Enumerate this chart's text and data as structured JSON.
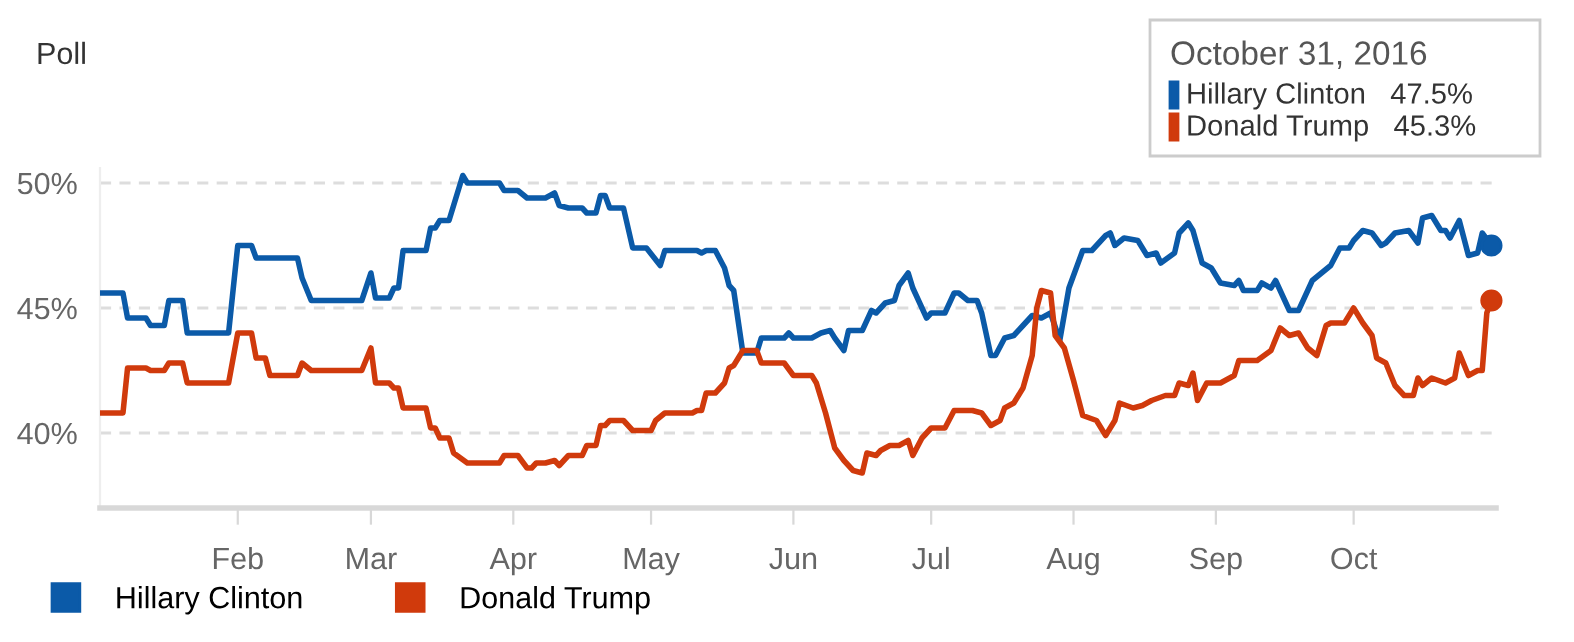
{
  "chart_data": {
    "type": "line",
    "ylabel": "Poll",
    "xlim": [
      "2016-01-02",
      "2016-11-01"
    ],
    "xticks": [
      {
        "value": "2016-02-01",
        "label": "Feb"
      },
      {
        "value": "2016-03-01",
        "label": "Mar"
      },
      {
        "value": "2016-04-01",
        "label": "Apr"
      },
      {
        "value": "2016-05-01",
        "label": "May"
      },
      {
        "value": "2016-06-01",
        "label": "Jun"
      },
      {
        "value": "2016-07-01",
        "label": "Jul"
      },
      {
        "value": "2016-08-01",
        "label": "Aug"
      },
      {
        "value": "2016-09-01",
        "label": "Sep"
      },
      {
        "value": "2016-10-01",
        "label": "Oct"
      }
    ],
    "ylim": [
      37.0,
      50.6
    ],
    "yticks": [
      {
        "value": 40,
        "label": "40%"
      },
      {
        "value": 45,
        "label": "45%"
      },
      {
        "value": 50,
        "label": "50%"
      }
    ],
    "grid": "y",
    "legend": "bottom left",
    "marker": "none",
    "line_style": "solid",
    "series": [
      {
        "name": "Hillary Clinton",
        "color": "#0b5aa8",
        "x": [
          "2016-01-02",
          "2016-01-07",
          "2016-01-08",
          "2016-01-12",
          "2016-01-13",
          "2016-01-16",
          "2016-01-17",
          "2016-01-20",
          "2016-01-21",
          "2016-01-30",
          "2016-02-01",
          "2016-02-04",
          "2016-02-05",
          "2016-02-14",
          "2016-02-15",
          "2016-02-17",
          "2016-02-28",
          "2016-03-01",
          "2016-03-02",
          "2016-03-05",
          "2016-03-06",
          "2016-03-07",
          "2016-03-08",
          "2016-03-13",
          "2016-03-14",
          "2016-03-15",
          "2016-03-16",
          "2016-03-18",
          "2016-03-19",
          "2016-03-21",
          "2016-03-22",
          "2016-03-29",
          "2016-03-30",
          "2016-04-02",
          "2016-04-04",
          "2016-04-08",
          "2016-04-10",
          "2016-04-11",
          "2016-04-13",
          "2016-04-16",
          "2016-04-17",
          "2016-04-19",
          "2016-04-20",
          "2016-04-21",
          "2016-04-22",
          "2016-04-25",
          "2016-04-27",
          "2016-04-30",
          "2016-05-03",
          "2016-05-04",
          "2016-05-11",
          "2016-05-12",
          "2016-05-13",
          "2016-05-15",
          "2016-05-17",
          "2016-05-18",
          "2016-05-19",
          "2016-05-21",
          "2016-05-24",
          "2016-05-25",
          "2016-05-30",
          "2016-05-31",
          "2016-06-01",
          "2016-06-05",
          "2016-06-07",
          "2016-06-09",
          "2016-06-10",
          "2016-06-12",
          "2016-06-13",
          "2016-06-16",
          "2016-06-18",
          "2016-06-19",
          "2016-06-21",
          "2016-06-23",
          "2016-06-24",
          "2016-06-26",
          "2016-06-27",
          "2016-06-30",
          "2016-07-01",
          "2016-07-04",
          "2016-07-06",
          "2016-07-07",
          "2016-07-09",
          "2016-07-11",
          "2016-07-12",
          "2016-07-14",
          "2016-07-15",
          "2016-07-17",
          "2016-07-19",
          "2016-07-21",
          "2016-07-23",
          "2016-07-25",
          "2016-07-27",
          "2016-07-29",
          "2016-07-31",
          "2016-08-03",
          "2016-08-05",
          "2016-08-06",
          "2016-08-08",
          "2016-08-09",
          "2016-08-10",
          "2016-08-12",
          "2016-08-15",
          "2016-08-17",
          "2016-08-19",
          "2016-08-20",
          "2016-08-23",
          "2016-08-24",
          "2016-08-26",
          "2016-08-27",
          "2016-08-29",
          "2016-08-31",
          "2016-09-02",
          "2016-09-05",
          "2016-09-06",
          "2016-09-07",
          "2016-09-10",
          "2016-09-11",
          "2016-09-13",
          "2016-09-14",
          "2016-09-15",
          "2016-09-17",
          "2016-09-19",
          "2016-09-21",
          "2016-09-22",
          "2016-09-24",
          "2016-09-26",
          "2016-09-28",
          "2016-09-30",
          "2016-10-01",
          "2016-10-03",
          "2016-10-05",
          "2016-10-07",
          "2016-10-08",
          "2016-10-10",
          "2016-10-13",
          "2016-10-15",
          "2016-10-16",
          "2016-10-18",
          "2016-10-20",
          "2016-10-21",
          "2016-10-22",
          "2016-10-24",
          "2016-10-26",
          "2016-10-28",
          "2016-10-29",
          "2016-10-31"
        ],
        "values": [
          45.6,
          45.6,
          44.6,
          44.6,
          44.3,
          44.3,
          45.3,
          45.3,
          44.0,
          44.0,
          47.5,
          47.5,
          47.0,
          47.0,
          46.2,
          45.3,
          45.3,
          46.4,
          45.4,
          45.4,
          45.8,
          45.8,
          47.3,
          47.3,
          48.2,
          48.2,
          48.5,
          48.5,
          49.1,
          50.3,
          50.0,
          50.0,
          49.7,
          49.7,
          49.4,
          49.4,
          49.6,
          49.1,
          49.0,
          49.0,
          48.8,
          48.8,
          49.5,
          49.5,
          49.0,
          49.0,
          47.4,
          47.4,
          46.7,
          47.3,
          47.3,
          47.2,
          47.3,
          47.3,
          46.6,
          45.9,
          45.7,
          43.2,
          43.2,
          43.8,
          43.8,
          44.0,
          43.8,
          43.8,
          44.0,
          44.1,
          43.8,
          43.3,
          44.1,
          44.1,
          44.9,
          44.8,
          45.2,
          45.3,
          45.9,
          46.4,
          45.8,
          44.6,
          44.8,
          44.8,
          45.6,
          45.6,
          45.3,
          45.3,
          44.8,
          43.1,
          43.1,
          43.8,
          43.9,
          44.3,
          44.7,
          44.6,
          44.8,
          43.7,
          45.8,
          47.3,
          47.3,
          47.5,
          47.9,
          48.0,
          47.5,
          47.8,
          47.7,
          47.1,
          47.2,
          46.8,
          47.2,
          48.0,
          48.4,
          48.1,
          46.8,
          46.6,
          46.0,
          45.9,
          46.1,
          45.7,
          45.7,
          46.0,
          45.8,
          46.1,
          45.7,
          44.9,
          44.9,
          45.7,
          46.1,
          46.4,
          46.7,
          47.4,
          47.4,
          47.7,
          48.1,
          48.0,
          47.5,
          47.6,
          48.0,
          48.1,
          47.6,
          48.6,
          48.7,
          48.1,
          48.1,
          47.8,
          48.5,
          47.1,
          47.2,
          48.0,
          47.5
        ]
      },
      {
        "name": "Donald Trump",
        "color": "#d03a0c",
        "x": [
          "2016-01-02",
          "2016-01-07",
          "2016-01-08",
          "2016-01-12",
          "2016-01-13",
          "2016-01-16",
          "2016-01-17",
          "2016-01-20",
          "2016-01-21",
          "2016-01-30",
          "2016-02-01",
          "2016-02-04",
          "2016-02-05",
          "2016-02-07",
          "2016-02-08",
          "2016-02-14",
          "2016-02-15",
          "2016-02-17",
          "2016-02-28",
          "2016-03-01",
          "2016-03-02",
          "2016-03-05",
          "2016-03-06",
          "2016-03-07",
          "2016-03-08",
          "2016-03-13",
          "2016-03-14",
          "2016-03-15",
          "2016-03-16",
          "2016-03-18",
          "2016-03-19",
          "2016-03-22",
          "2016-03-29",
          "2016-03-30",
          "2016-04-02",
          "2016-04-04",
          "2016-04-05",
          "2016-04-06",
          "2016-04-08",
          "2016-04-10",
          "2016-04-11",
          "2016-04-13",
          "2016-04-16",
          "2016-04-17",
          "2016-04-19",
          "2016-04-20",
          "2016-04-21",
          "2016-04-22",
          "2016-04-25",
          "2016-04-27",
          "2016-05-01",
          "2016-05-02",
          "2016-05-04",
          "2016-05-10",
          "2016-05-11",
          "2016-05-12",
          "2016-05-13",
          "2016-05-15",
          "2016-05-17",
          "2016-05-18",
          "2016-05-19",
          "2016-05-21",
          "2016-05-24",
          "2016-05-25",
          "2016-05-30",
          "2016-06-01",
          "2016-06-05",
          "2016-06-06",
          "2016-06-08",
          "2016-06-10",
          "2016-06-12",
          "2016-06-14",
          "2016-06-16",
          "2016-06-17",
          "2016-06-19",
          "2016-06-20",
          "2016-06-22",
          "2016-06-24",
          "2016-06-26",
          "2016-06-27",
          "2016-06-29",
          "2016-07-01",
          "2016-07-04",
          "2016-07-06",
          "2016-07-10",
          "2016-07-12",
          "2016-07-14",
          "2016-07-16",
          "2016-07-17",
          "2016-07-19",
          "2016-07-21",
          "2016-07-23",
          "2016-07-24",
          "2016-07-25",
          "2016-07-27",
          "2016-07-28",
          "2016-07-30",
          "2016-08-01",
          "2016-08-03",
          "2016-08-06",
          "2016-08-08",
          "2016-08-10",
          "2016-08-11",
          "2016-08-14",
          "2016-08-16",
          "2016-08-18",
          "2016-08-21",
          "2016-08-23",
          "2016-08-24",
          "2016-08-26",
          "2016-08-27",
          "2016-08-28",
          "2016-08-30",
          "2016-09-02",
          "2016-09-05",
          "2016-09-06",
          "2016-09-10",
          "2016-09-13",
          "2016-09-15",
          "2016-09-17",
          "2016-09-19",
          "2016-09-21",
          "2016-09-23",
          "2016-09-25",
          "2016-09-26",
          "2016-09-29",
          "2016-10-01",
          "2016-10-03",
          "2016-10-05",
          "2016-10-06",
          "2016-10-08",
          "2016-10-10",
          "2016-10-12",
          "2016-10-14",
          "2016-10-15",
          "2016-10-16",
          "2016-10-18",
          "2016-10-21",
          "2016-10-23",
          "2016-10-24",
          "2016-10-26",
          "2016-10-28",
          "2016-10-29",
          "2016-10-30",
          "2016-10-31"
        ],
        "values": [
          40.8,
          40.8,
          42.6,
          42.6,
          42.5,
          42.5,
          42.8,
          42.8,
          42.0,
          42.0,
          44.0,
          44.0,
          43.0,
          43.0,
          42.3,
          42.3,
          42.8,
          42.5,
          42.5,
          43.4,
          42.0,
          42.0,
          41.8,
          41.8,
          41.0,
          41.0,
          40.2,
          40.2,
          39.8,
          39.8,
          39.2,
          38.8,
          38.8,
          39.1,
          39.1,
          38.6,
          38.6,
          38.8,
          38.8,
          38.9,
          38.7,
          39.1,
          39.1,
          39.5,
          39.5,
          40.3,
          40.3,
          40.5,
          40.5,
          40.1,
          40.1,
          40.5,
          40.8,
          40.8,
          40.9,
          40.9,
          41.6,
          41.6,
          42.0,
          42.6,
          42.7,
          43.3,
          43.3,
          42.8,
          42.8,
          42.3,
          42.3,
          42.0,
          40.8,
          39.4,
          38.9,
          38.5,
          38.4,
          39.2,
          39.1,
          39.3,
          39.5,
          39.5,
          39.7,
          39.1,
          39.8,
          40.2,
          40.2,
          40.9,
          40.9,
          40.8,
          40.3,
          40.5,
          41.0,
          41.2,
          41.8,
          43.1,
          45.0,
          45.7,
          45.6,
          43.9,
          43.4,
          42.1,
          40.7,
          40.5,
          39.9,
          40.5,
          41.2,
          41.0,
          41.1,
          41.3,
          41.5,
          41.5,
          42.0,
          41.9,
          42.4,
          41.3,
          42.0,
          42.0,
          42.3,
          42.9,
          42.9,
          43.3,
          44.2,
          43.9,
          44.0,
          43.4,
          43.1,
          44.3,
          44.4,
          44.4,
          45.0,
          44.4,
          43.9,
          43.0,
          42.8,
          41.9,
          41.5,
          41.5,
          42.2,
          41.9,
          42.2,
          42.0,
          42.2,
          43.2,
          42.3,
          42.5,
          42.5,
          44.8,
          45.3
        ]
      }
    ],
    "annotations": [
      "October 31, 2016",
      "Hillary Clinton   47.5%",
      "Donald Trump   45.3%"
    ]
  }
}
